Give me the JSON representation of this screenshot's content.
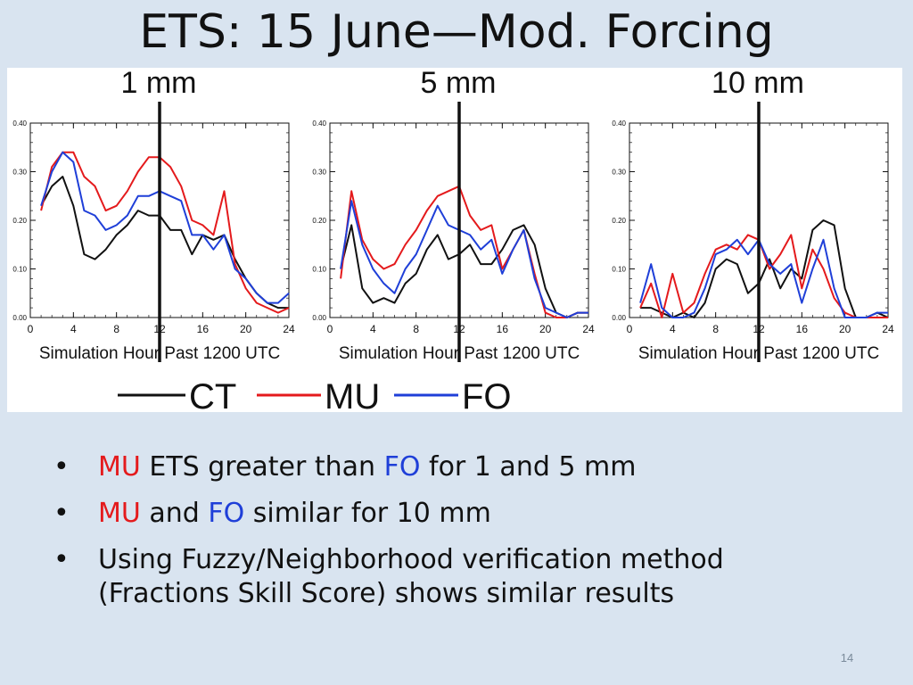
{
  "slide": {
    "title": "ETS:  15 June—Mod. Forcing",
    "page_number": "14"
  },
  "legend": {
    "entries": [
      {
        "label": "CT",
        "color": "#111111"
      },
      {
        "label": "MU",
        "color": "#e41a1c"
      },
      {
        "label": "FO",
        "color": "#1f3fd8"
      }
    ]
  },
  "chart_data": [
    {
      "type": "line",
      "title": "1 mm",
      "xlabel": "Simulation Hour Past 1200 UTC",
      "ylabel": "",
      "xlim": [
        0,
        24
      ],
      "ylim": [
        0,
        0.4
      ],
      "xticks": [
        0,
        4,
        8,
        12,
        16,
        20,
        24
      ],
      "yticks": [
        "0.00",
        "0.10",
        "0.20",
        "0.30",
        "0.40"
      ],
      "vline_x": 12,
      "x": [
        1,
        2,
        3,
        4,
        5,
        6,
        7,
        8,
        9,
        10,
        11,
        12,
        13,
        14,
        15,
        16,
        17,
        18,
        19,
        20,
        21,
        22,
        23,
        24
      ],
      "series": [
        {
          "name": "CT",
          "color": "#111111",
          "values": [
            0.23,
            0.27,
            0.29,
            0.23,
            0.13,
            0.12,
            0.14,
            0.17,
            0.19,
            0.22,
            0.21,
            0.21,
            0.18,
            0.18,
            0.13,
            0.17,
            0.16,
            0.17,
            0.12,
            0.08,
            0.05,
            0.03,
            0.02,
            0.02
          ]
        },
        {
          "name": "MU",
          "color": "#e41a1c",
          "values": [
            0.22,
            0.31,
            0.34,
            0.34,
            0.29,
            0.27,
            0.22,
            0.23,
            0.26,
            0.3,
            0.33,
            0.33,
            0.31,
            0.27,
            0.2,
            0.19,
            0.17,
            0.26,
            0.11,
            0.06,
            0.03,
            0.02,
            0.01,
            0.02
          ]
        },
        {
          "name": "FO",
          "color": "#1f3fd8",
          "values": [
            0.23,
            0.3,
            0.34,
            0.32,
            0.22,
            0.21,
            0.18,
            0.19,
            0.21,
            0.25,
            0.25,
            0.26,
            0.25,
            0.24,
            0.17,
            0.17,
            0.14,
            0.17,
            0.1,
            0.08,
            0.05,
            0.03,
            0.03,
            0.05
          ]
        }
      ]
    },
    {
      "type": "line",
      "title": "5 mm",
      "xlabel": "Simulation Hour Past 1200 UTC",
      "ylabel": "",
      "xlim": [
        0,
        24
      ],
      "ylim": [
        0,
        0.4
      ],
      "xticks": [
        0,
        4,
        8,
        12,
        16,
        20,
        24
      ],
      "yticks": [
        "0.00",
        "0.10",
        "0.20",
        "0.30",
        "0.40"
      ],
      "vline_x": 12,
      "x": [
        1,
        2,
        3,
        4,
        5,
        6,
        7,
        8,
        9,
        10,
        11,
        12,
        13,
        14,
        15,
        16,
        17,
        18,
        19,
        20,
        21,
        22,
        23,
        24
      ],
      "series": [
        {
          "name": "CT",
          "color": "#111111",
          "values": [
            0.1,
            0.19,
            0.06,
            0.03,
            0.04,
            0.03,
            0.07,
            0.09,
            0.14,
            0.17,
            0.12,
            0.13,
            0.15,
            0.11,
            0.11,
            0.14,
            0.18,
            0.19,
            0.15,
            0.06,
            0.01,
            0.0,
            0.01,
            0.01
          ]
        },
        {
          "name": "MU",
          "color": "#e41a1c",
          "values": [
            0.08,
            0.26,
            0.16,
            0.12,
            0.1,
            0.11,
            0.15,
            0.18,
            0.22,
            0.25,
            0.26,
            0.27,
            0.21,
            0.18,
            0.19,
            0.1,
            0.14,
            0.18,
            0.09,
            0.01,
            0.0,
            0.0,
            0.01,
            0.01
          ]
        },
        {
          "name": "FO",
          "color": "#1f3fd8",
          "values": [
            0.1,
            0.24,
            0.15,
            0.1,
            0.07,
            0.05,
            0.1,
            0.13,
            0.18,
            0.23,
            0.19,
            0.18,
            0.17,
            0.14,
            0.16,
            0.09,
            0.14,
            0.18,
            0.08,
            0.02,
            0.01,
            0.0,
            0.01,
            0.01
          ]
        }
      ]
    },
    {
      "type": "line",
      "title": "10 mm",
      "xlabel": "Simulation Hour Past 1200 UTC",
      "ylabel": "",
      "xlim": [
        0,
        24
      ],
      "ylim": [
        0,
        0.4
      ],
      "xticks": [
        0,
        4,
        8,
        12,
        16,
        20,
        24
      ],
      "yticks": [
        "0.00",
        "0.10",
        "0.20",
        "0.30",
        "0.40"
      ],
      "vline_x": 12,
      "x": [
        1,
        2,
        3,
        4,
        5,
        6,
        7,
        8,
        9,
        10,
        11,
        12,
        13,
        14,
        15,
        16,
        17,
        18,
        19,
        20,
        21,
        22,
        23,
        24
      ],
      "series": [
        {
          "name": "CT",
          "color": "#111111",
          "values": [
            0.02,
            0.02,
            0.01,
            0.0,
            0.01,
            0.0,
            0.03,
            0.1,
            0.12,
            0.11,
            0.05,
            0.07,
            0.12,
            0.06,
            0.1,
            0.08,
            0.18,
            0.2,
            0.19,
            0.06,
            0.0,
            0.0,
            0.01,
            0.0
          ]
        },
        {
          "name": "MU",
          "color": "#e41a1c",
          "values": [
            0.02,
            0.07,
            0.0,
            0.09,
            0.01,
            0.03,
            0.09,
            0.14,
            0.15,
            0.14,
            0.17,
            0.16,
            0.1,
            0.13,
            0.17,
            0.06,
            0.14,
            0.1,
            0.04,
            0.01,
            0.0,
            0.0,
            0.0,
            0.0
          ]
        },
        {
          "name": "FO",
          "color": "#1f3fd8",
          "values": [
            0.03,
            0.11,
            0.02,
            0.0,
            0.0,
            0.01,
            0.06,
            0.13,
            0.14,
            0.16,
            0.13,
            0.16,
            0.11,
            0.09,
            0.11,
            0.03,
            0.1,
            0.16,
            0.06,
            0.0,
            0.0,
            0.0,
            0.01,
            0.01
          ]
        }
      ]
    }
  ],
  "bullets": [
    {
      "parts": [
        {
          "text": "MU",
          "color": "red"
        },
        {
          "text": " ETS greater than ",
          "color": ""
        },
        {
          "text": "FO",
          "color": "blue"
        },
        {
          "text": " for 1 and 5 mm",
          "color": ""
        }
      ]
    },
    {
      "parts": [
        {
          "text": "MU",
          "color": "red"
        },
        {
          "text": " and ",
          "color": ""
        },
        {
          "text": "FO",
          "color": "blue"
        },
        {
          "text": " similar for 10 mm",
          "color": ""
        }
      ]
    },
    {
      "parts": [
        {
          "text": "Using Fuzzy/Neighborhood verification method (Fractions Skill Score) shows similar results",
          "color": ""
        }
      ]
    }
  ],
  "bullet_glyph": "•"
}
